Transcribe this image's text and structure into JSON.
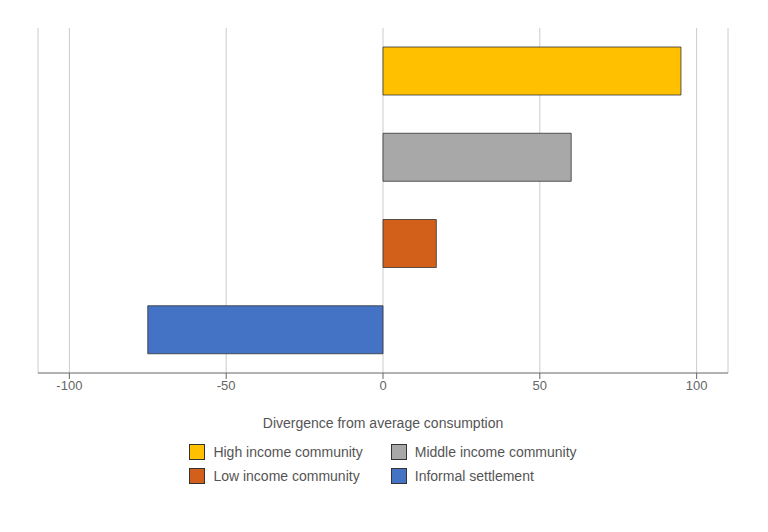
{
  "chart_data": {
    "type": "bar",
    "orientation": "horizontal",
    "categories": [
      "High income community",
      "Middle income community",
      "Low income community",
      "Informal settlement"
    ],
    "values": [
      95,
      60,
      17,
      -75
    ],
    "colors": [
      "#FFC000",
      "#A8A8A8",
      "#D2601A",
      "#4472C4"
    ],
    "xlabel": "Divergence from average consumption",
    "xlim": [
      -110,
      110
    ],
    "xticks": [
      -100,
      -50,
      0,
      50,
      100
    ],
    "grid": true,
    "legend": "bottom",
    "tick_labels": "x"
  }
}
